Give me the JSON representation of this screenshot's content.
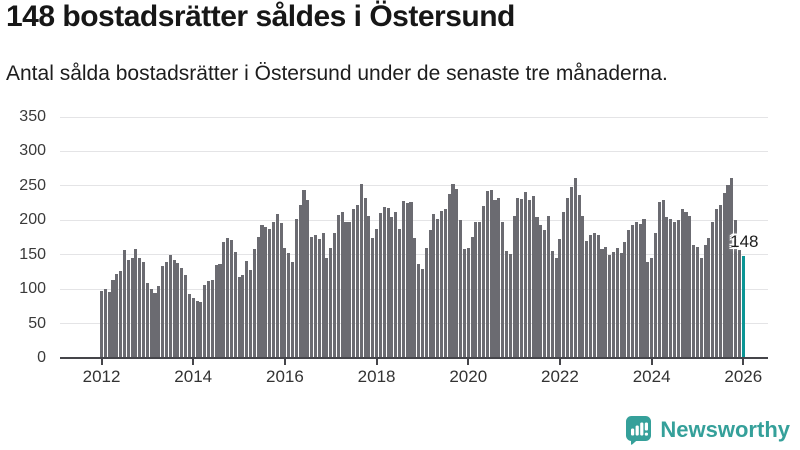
{
  "header": {
    "title": "148 bostadsrätter såldes i Östersund",
    "subtitle": "Antal sålda bostadsrätter i Östersund under de senaste tre månaderna."
  },
  "chart_data": {
    "type": "bar",
    "title": "148 bostadsrätter såldes i Östersund",
    "subtitle": "Antal sålda bostadsrätter i Östersund under de senaste tre månaderna.",
    "xlabel": "",
    "ylabel": "",
    "ylim": [
      0,
      350
    ],
    "y_ticks": [
      0,
      50,
      100,
      150,
      200,
      250,
      300,
      350
    ],
    "x_tick_labels": [
      "2012",
      "2014",
      "2016",
      "2018",
      "2020",
      "2022",
      "2024",
      "2026"
    ],
    "grid": true,
    "period": "monthly",
    "series_by_year": [
      {
        "year": 2012,
        "values": [
          98,
          100,
          96,
          114,
          122,
          126,
          157,
          143,
          146,
          159,
          146,
          140
        ]
      },
      {
        "year": 2013,
        "values": [
          109,
          100,
          95,
          105,
          133,
          139,
          150,
          143,
          138,
          131,
          121,
          93
        ]
      },
      {
        "year": 2014,
        "values": [
          87,
          83,
          82,
          106,
          112,
          114,
          135,
          137,
          169,
          174,
          171,
          154
        ]
      },
      {
        "year": 2015,
        "values": [
          118,
          121,
          141,
          128,
          158,
          176,
          193,
          190,
          188,
          197,
          209,
          196
        ]
      },
      {
        "year": 2016,
        "values": [
          160,
          152,
          140,
          202,
          222,
          244,
          229,
          176,
          179,
          173,
          182,
          145
        ]
      },
      {
        "year": 2017,
        "values": [
          160,
          182,
          208,
          212,
          198,
          197,
          216,
          222,
          253,
          233,
          207,
          174
        ]
      },
      {
        "year": 2018,
        "values": [
          187,
          210,
          220,
          218,
          205,
          212,
          188,
          228,
          225,
          227,
          174,
          136
        ]
      },
      {
        "year": 2019,
        "values": [
          129,
          160,
          186,
          209,
          202,
          213,
          217,
          238,
          253,
          246,
          200,
          159
        ]
      },
      {
        "year": 2020,
        "values": [
          160,
          176,
          197,
          198,
          221,
          243,
          244,
          229,
          232,
          198,
          156,
          151
        ]
      },
      {
        "year": 2021,
        "values": [
          206,
          233,
          231,
          241,
          229,
          236,
          205,
          193,
          186,
          206,
          155,
          145
        ]
      },
      {
        "year": 2022,
        "values": [
          173,
          212,
          233,
          248,
          262,
          237,
          207,
          170,
          179,
          181,
          178,
          159
        ]
      },
      {
        "year": 2023,
        "values": [
          162,
          150,
          154,
          160,
          152,
          168,
          186,
          193,
          198,
          195,
          202,
          140
        ]
      },
      {
        "year": 2024,
        "values": [
          145,
          182,
          227,
          230,
          205,
          202,
          198,
          200,
          216,
          212,
          206,
          164
        ]
      },
      {
        "year": 2025,
        "values": [
          162,
          146,
          164,
          174,
          198,
          217,
          222,
          240,
          252,
          262,
          201,
          157
        ]
      },
      {
        "year": 2026,
        "values": [
          148
        ]
      }
    ],
    "highlight": {
      "label": "148",
      "value": 148,
      "position": "last-bar"
    },
    "colors": {
      "bar": "#6b6b71",
      "highlight": "#0b9595",
      "grid": "#e4e4e6",
      "axis": "#45454a"
    },
    "legend_position": "none"
  },
  "attribution": {
    "brand": "Newsworthy",
    "brand_color": "#35a09a"
  }
}
